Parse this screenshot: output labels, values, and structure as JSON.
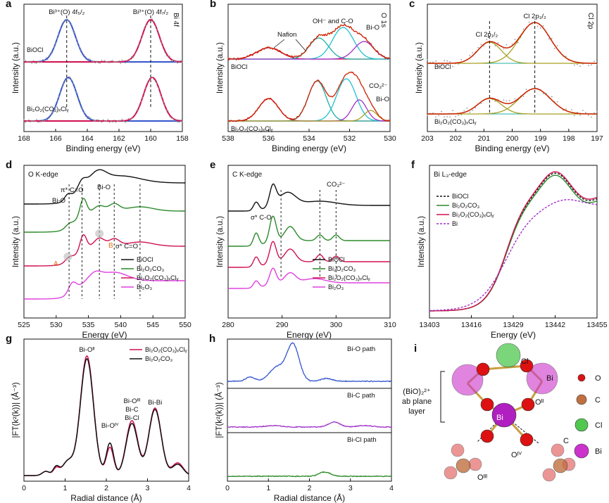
{
  "panels": {
    "a": {
      "letter": "a",
      "tag": "Bi 4f",
      "xlabel": "Binding energy (eV)",
      "ylabel": "Intensity (a.u.)",
      "xticks": [
        "168",
        "166",
        "164",
        "162",
        "160",
        "158"
      ],
      "peak1": "Bi³⁺(O) 4f₅/₂",
      "peak2": "Bi³⁺(O) 4f₇/₂",
      "s1": "BiOCl",
      "s2": "Bi₂O₂(CO₃)ₓClᵧ"
    },
    "b": {
      "letter": "b",
      "tag": "O 1s",
      "xlabel": "Binding energy (eV)",
      "ylabel": "Intensity (a.u.)",
      "xticks": [
        "538",
        "536",
        "534",
        "532",
        "530"
      ],
      "ann_nafion": "Nafion",
      "ann_oh": "OH⁻ and C-O",
      "ann_bio1": "Bi-O",
      "ann_co3": "CO₃²⁻",
      "ann_bio2": "Bi-O",
      "s1": "BiOCl",
      "s2": "Bi₂O₂(CO₃)ₓClᵧ"
    },
    "c": {
      "letter": "c",
      "tag": "Cl 2p",
      "xlabel": "Binding energy (eV)",
      "ylabel": "Intensity (a.u.)",
      "xticks": [
        "203",
        "202",
        "201",
        "200",
        "199",
        "198",
        "197"
      ],
      "peak1": "Cl 2p₁/₂",
      "peak2": "Cl 2p₃/₂",
      "s1": "BiOCl",
      "s2": "Bi₂O₂(CO₃)ₓClᵧ"
    },
    "d": {
      "letter": "d",
      "tag": "O K-edge",
      "xlabel": "Energy (eV)",
      "ylabel": "Intensity (a.u.)",
      "xticks": [
        "525",
        "530",
        "535",
        "540",
        "545",
        "550"
      ],
      "ann_pi": "π* C=O",
      "ann_bio_top": "Bi-O",
      "ann_bio_left": "Bi-O",
      "ann_sigma": "σ* C=O",
      "ann_A": "A",
      "ann_B": "B",
      "legend": [
        "BiOCl",
        "Bi₂O₂CO₃",
        "Bi₂O₂(CO₃)ₓClᵧ",
        "Bi₂O₃"
      ]
    },
    "e": {
      "letter": "e",
      "tag": "C K-edge",
      "xlabel": "Energy (eV)",
      "ylabel": "Intensity (a.u.)",
      "xticks": [
        "280",
        "290",
        "300",
        "310"
      ],
      "ann_sigma": "σ* C-O",
      "ann_co3": "CO₃²⁻",
      "legend": [
        "BiOCl",
        "Bi₂O₂CO₃",
        "Bi₂O₂(CO₃)ₓClᵧ",
        "Bi₂O₃"
      ]
    },
    "f": {
      "letter": "f",
      "tag": "Bi L₃-edge",
      "xlabel": "Energy (eV)",
      "ylabel": "Intensity (a.u.)",
      "xticks": [
        "13403",
        "13416",
        "13429",
        "13442",
        "13455"
      ],
      "legend": [
        "BiOCl",
        "Bi₂O₂CO₃",
        "Bi₂O₂(CO₃)ₓClᵧ",
        "Bi"
      ]
    },
    "g": {
      "letter": "g",
      "xlabel": "Radial distance (Å)",
      "ylabel": "|FT(k²(k))| (Å⁻³)",
      "xticks": [
        "0",
        "1",
        "2",
        "3",
        "4"
      ],
      "legend": [
        "Bi₂O₂(CO₃)ₓClᵧ",
        "Bi₂O₂CO₃"
      ],
      "ann_bio2": "Bi-Oᴵᴵ",
      "ann_bio4": "Bi-Oᴵⱽ",
      "ann_multi": [
        "Bi-Oᴵᴵᴵ",
        "Bi-C",
        "Bi-Cl"
      ],
      "ann_bibi": "Bi-Bi"
    },
    "h": {
      "letter": "h",
      "xlabel": "Radial distance (Å)",
      "ylabel": "|FT(k²(k))| (Å⁻³)",
      "xticks": [
        "0",
        "1",
        "2",
        "3",
        "4"
      ],
      "paths": [
        "Bi-O  path",
        "Bi-C  path",
        "Bi-Cl path"
      ]
    },
    "i": {
      "letter": "i",
      "layer_label": [
        "(BiO)₂²⁺",
        "ab plane",
        "layer"
      ],
      "atom_labels": [
        "Cl",
        "Bi",
        "Bi",
        "Oᴵᴵ",
        "Oᴵᴵᴵ",
        "Oᴵⱽ",
        "C"
      ],
      "legend": [
        "O",
        "C",
        "Cl",
        "Bi"
      ]
    }
  },
  "colors": {
    "data_gray": "#9a9a9a",
    "fit_red": "#cc2200",
    "blue": "#3355cc",
    "cyan": "#22c0d0",
    "purple": "#a030c8",
    "teal": "#20b0a0",
    "olive": "#a8a020",
    "black": "#111111",
    "green": "#2a8a2a",
    "crimson": "#d01050",
    "magenta": "#e040e0",
    "orange": "#e07020"
  },
  "chart_data": [
    {
      "panel": "a",
      "type": "line",
      "xlim": [
        168,
        158
      ],
      "reversed_x": true,
      "peaks_eV": {
        "BiOCl": [
          165.3,
          160.0
        ],
        "Bi2O2(CO3)xCly": [
          165.2,
          159.9
        ]
      }
    },
    {
      "panel": "b",
      "type": "line",
      "xlim": [
        539,
        529
      ],
      "reversed_x": true,
      "components_eV": {
        "BiOCl": [
          536.5,
          533.4,
          531.9,
          530.6
        ],
        "Bi2O2(CO3)xCly": [
          536.5,
          533.5,
          531.7,
          530.9,
          530.2
        ]
      }
    },
    {
      "panel": "c",
      "type": "line",
      "xlim": [
        203,
        197
      ],
      "reversed_x": true,
      "peaks_eV": {
        "Cl 2p1/2": 200.8,
        "Cl 2p3/2": 199.2
      }
    },
    {
      "panel": "d",
      "type": "line",
      "xlim": [
        525,
        550
      ],
      "markers_eV": [
        532,
        534,
        536.7,
        539,
        543
      ]
    },
    {
      "panel": "e",
      "type": "line",
      "xlim": [
        280,
        310
      ],
      "markers_eV": [
        289.8,
        297,
        300
      ]
    },
    {
      "panel": "f",
      "type": "line",
      "xlim": [
        13403,
        13455
      ],
      "edge_eV": 13426,
      "whiteline_eV": 13442
    },
    {
      "panel": "g",
      "type": "line",
      "xlim": [
        0,
        4.5
      ],
      "peaks_A": [
        1.72,
        2.35,
        2.95,
        3.58
      ]
    },
    {
      "panel": "h",
      "type": "line",
      "xlim": [
        0,
        4.3
      ],
      "peaks_A": {
        "Bi-O": 1.7,
        "Bi-C": 2.8,
        "Bi-Cl": 2.55
      }
    }
  ]
}
